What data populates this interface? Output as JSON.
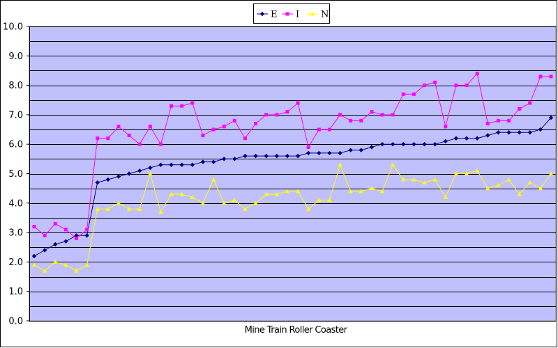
{
  "chart_data": {
    "type": "line",
    "title": "",
    "xlabel": "Mine Train Roller Coaster",
    "ylabel": "",
    "ylim": [
      0,
      10
    ],
    "y_ticks": [
      "0.0",
      "1.0",
      "2.0",
      "3.0",
      "4.0",
      "5.0",
      "6.0",
      "7.0",
      "8.0",
      "9.0",
      "10.0"
    ],
    "grid": true,
    "legend": "top-center",
    "plot_background": "#c0c0ff",
    "x": [
      1,
      2,
      3,
      4,
      5,
      6,
      7,
      8,
      9,
      10,
      11,
      12,
      13,
      14,
      15,
      16,
      17,
      18,
      19,
      20,
      21,
      22,
      23,
      24,
      25,
      26,
      27,
      28,
      29,
      30,
      31,
      32,
      33,
      34,
      35,
      36,
      37,
      38,
      39,
      40,
      41,
      42,
      43,
      44,
      45,
      46,
      47,
      48,
      49,
      50
    ],
    "series": [
      {
        "name": "E",
        "color": "#000080",
        "marker": "diamond",
        "values": [
          2.2,
          2.4,
          2.6,
          2.7,
          2.9,
          2.9,
          4.7,
          4.8,
          4.9,
          5.0,
          5.1,
          5.2,
          5.3,
          5.3,
          5.3,
          5.3,
          5.4,
          5.4,
          5.5,
          5.5,
          5.6,
          5.6,
          5.6,
          5.6,
          5.6,
          5.6,
          5.7,
          5.7,
          5.7,
          5.7,
          5.8,
          5.8,
          5.9,
          6.0,
          6.0,
          6.0,
          6.0,
          6.0,
          6.0,
          6.1,
          6.2,
          6.2,
          6.2,
          6.3,
          6.4,
          6.4,
          6.4,
          6.4,
          6.5,
          6.9
        ]
      },
      {
        "name": "I",
        "color": "#ff00ff",
        "marker": "square",
        "values": [
          3.2,
          2.9,
          3.3,
          3.1,
          2.8,
          3.1,
          6.2,
          6.2,
          6.6,
          6.3,
          6.0,
          6.6,
          6.0,
          7.3,
          7.3,
          7.4,
          6.3,
          6.5,
          6.6,
          6.8,
          6.2,
          6.7,
          7.0,
          7.0,
          7.1,
          7.4,
          5.9,
          6.5,
          6.5,
          7.0,
          6.8,
          6.8,
          7.1,
          7.0,
          7.0,
          7.7,
          7.7,
          8.0,
          8.1,
          6.6,
          8.0,
          8.0,
          8.4,
          6.7,
          6.8,
          6.8,
          7.2,
          7.4,
          8.3,
          8.3
        ]
      },
      {
        "name": "N",
        "color": "#ffff00",
        "marker": "triangle",
        "values": [
          1.9,
          1.7,
          2.0,
          1.9,
          1.7,
          1.9,
          3.8,
          3.8,
          4.0,
          3.8,
          3.8,
          5.0,
          3.7,
          4.3,
          4.3,
          4.2,
          4.0,
          4.8,
          4.0,
          4.1,
          3.8,
          4.0,
          4.3,
          4.3,
          4.4,
          4.4,
          3.8,
          4.1,
          4.1,
          5.3,
          4.4,
          4.4,
          4.5,
          4.4,
          5.3,
          4.8,
          4.8,
          4.7,
          4.8,
          4.2,
          5.0,
          5.0,
          5.1,
          4.5,
          4.6,
          4.8,
          4.3,
          4.7,
          4.5,
          5.0
        ]
      }
    ]
  }
}
